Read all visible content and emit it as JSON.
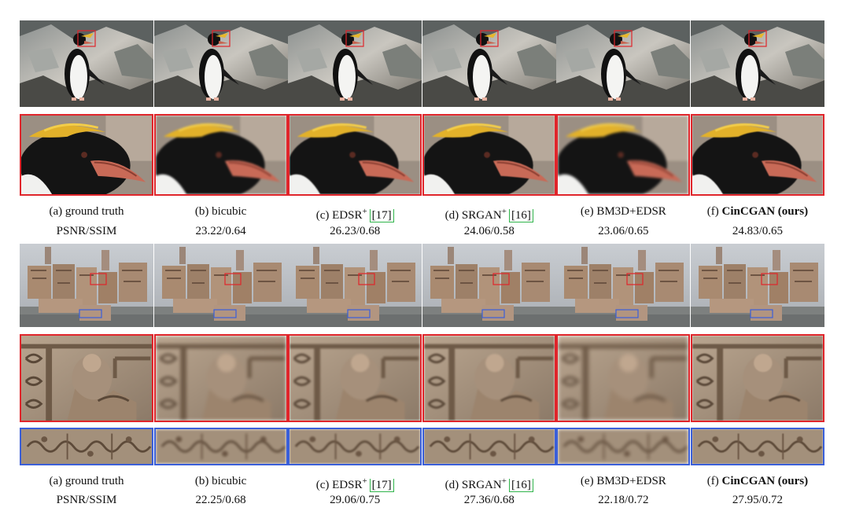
{
  "figure": {
    "columns": [
      {
        "prefix": "(a)",
        "name": "ground truth",
        "sup": "",
        "ref": "",
        "bold": false
      },
      {
        "prefix": "(b)",
        "name": "bicubic",
        "sup": "",
        "ref": "",
        "bold": false
      },
      {
        "prefix": "(c)",
        "name": "EDSR",
        "sup": "+",
        "ref": "[17]",
        "bold": false
      },
      {
        "prefix": "(d)",
        "name": "SRGAN",
        "sup": "+",
        "ref": "[16]",
        "bold": false
      },
      {
        "prefix": "(e)",
        "name": "BM3D+EDSR",
        "sup": "",
        "ref": "",
        "bold": false
      },
      {
        "prefix": "(f)",
        "name": "CinCGAN (ours)",
        "sup": "",
        "ref": "",
        "bold": true
      }
    ],
    "set1_scores": [
      "PSNR/SSIM",
      "23.22/0.64",
      "26.23/0.68",
      "24.06/0.58",
      "23.06/0.65",
      "24.83/0.65"
    ],
    "set2_scores": [
      "PSNR/SSIM",
      "22.25/0.68",
      "29.06/0.75",
      "27.36/0.68",
      "22.18/0.72",
      "27.95/0.72"
    ],
    "colors": {
      "red_box": "#e0252b",
      "blue_box": "#3a5fd9",
      "ref_box": "#2fb34a"
    }
  }
}
